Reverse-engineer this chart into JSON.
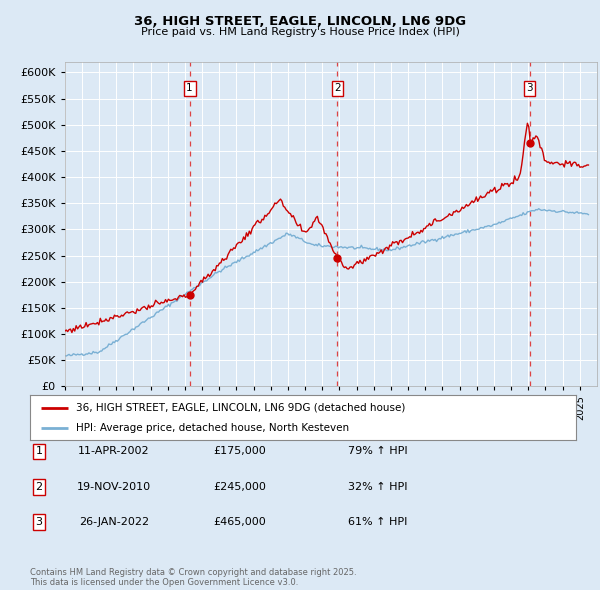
{
  "title": "36, HIGH STREET, EAGLE, LINCOLN, LN6 9DG",
  "subtitle": "Price paid vs. HM Land Registry's House Price Index (HPI)",
  "legend_line1": "36, HIGH STREET, EAGLE, LINCOLN, LN6 9DG (detached house)",
  "legend_line2": "HPI: Average price, detached house, North Kesteven",
  "footnote": "Contains HM Land Registry data © Crown copyright and database right 2025.\nThis data is licensed under the Open Government Licence v3.0.",
  "sales": [
    {
      "label": 1,
      "date_num": 2002.27,
      "price": 175000,
      "pct": "79%",
      "dir": "↑",
      "date_str": "11-APR-2002"
    },
    {
      "label": 2,
      "date_num": 2010.88,
      "price": 245000,
      "pct": "32%",
      "dir": "↑",
      "date_str": "19-NOV-2010"
    },
    {
      "label": 3,
      "date_num": 2022.07,
      "price": 465000,
      "pct": "61%",
      "dir": "↑",
      "date_str": "26-JAN-2022"
    }
  ],
  "sale_marker_color": "#cc0000",
  "vline_color": "#dd4444",
  "background_color": "#dce9f5",
  "plot_bg_color": "#dce9f5",
  "red_line_color": "#cc0000",
  "blue_line_color": "#7ab0d4",
  "ylim": [
    0,
    620000
  ],
  "xlim_start": 1995.0,
  "xlim_end": 2026.0,
  "grid_color": "#ffffff",
  "label_box_edge": "#cc0000"
}
